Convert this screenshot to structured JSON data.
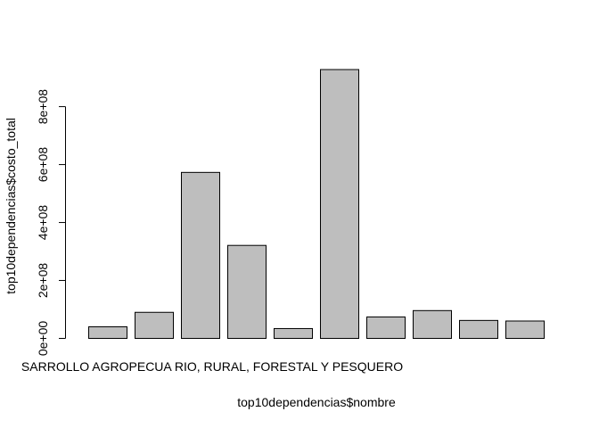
{
  "chart_data": {
    "type": "bar",
    "categories": [
      "",
      "",
      "",
      "",
      "",
      "",
      "",
      "",
      "",
      ""
    ],
    "visible_category_label": "SARROLLO AGROPECUA RIO, RURAL, FORESTAL Y PESQUERO",
    "values": [
      40000000,
      90000000,
      573000000,
      321000000,
      34000000,
      928000000,
      74000000,
      96000000,
      62000000,
      60000000
    ],
    "xlabel": "top10dependencias$nombre",
    "ylabel": "top10dependencias$costo_total",
    "yticks": [
      0,
      200000000,
      400000000,
      600000000,
      800000000
    ],
    "ytick_labels": [
      "0e+00",
      "2e+08",
      "4e+08",
      "6e+08",
      "8e+08"
    ],
    "ylim": [
      0,
      928000000
    ],
    "bar_color": "#bebebe",
    "grid": false,
    "legend": "none"
  }
}
